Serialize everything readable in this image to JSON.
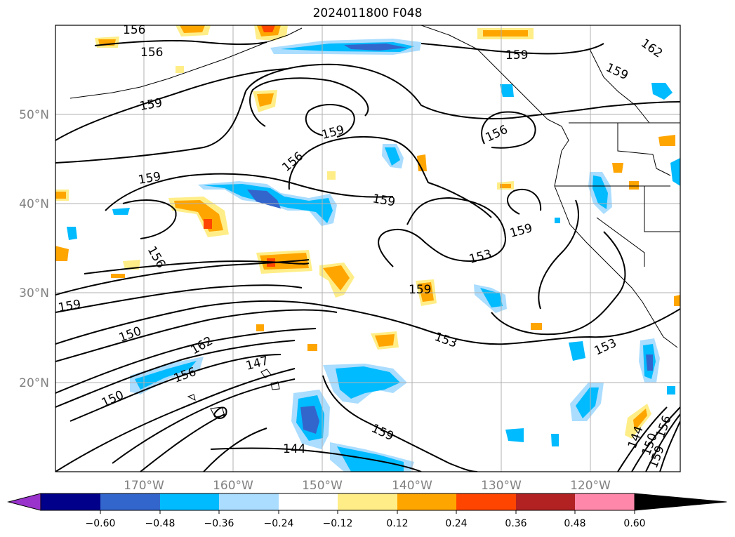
{
  "title": "2024011800 F048",
  "lat_labels": [
    "50°N",
    "40°N",
    "30°N",
    "20°N"
  ],
  "lon_labels": [
    "170°W",
    "160°W",
    "150°W",
    "140°W",
    "130°W",
    "120°W"
  ],
  "contour_labels": [
    "156",
    "156",
    "159",
    "159",
    "162",
    "159",
    "159",
    "156",
    "156",
    "159",
    "159",
    "159",
    "156",
    "153",
    "159",
    "159",
    "153",
    "150",
    "153",
    "162",
    "150",
    "156",
    "147",
    "159",
    "144",
    "144",
    "150",
    "156",
    "159"
  ],
  "colorbar": {
    "ticks": [
      "−0.60",
      "−0.48",
      "−0.36",
      "−0.24",
      "−0.12",
      "0.12",
      "0.24",
      "0.36",
      "0.48",
      "0.60"
    ],
    "colors": [
      "#9933cc",
      "#00008b",
      "#3366cc",
      "#00bbff",
      "#aaddff",
      "#ffffff",
      "#ffee88",
      "#ffa500",
      "#ff4500",
      "#b22222",
      "#ff88aa"
    ]
  }
}
